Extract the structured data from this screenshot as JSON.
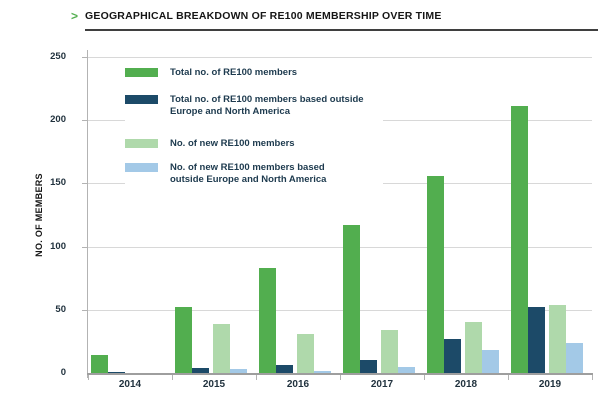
{
  "title": "GEOGRAPHICAL BREAKDOWN OF RE100 MEMBERSHIP OVER TIME",
  "title_chevron": ">",
  "chart_data": {
    "type": "bar",
    "title": "GEOGRAPHICAL BREAKDOWN OF RE100 MEMBERSHIP OVER TIME",
    "xlabel": "",
    "ylabel": "NO. OF MEMBERS",
    "ylim": [
      0,
      250
    ],
    "ytick_step": 50,
    "yticks": [
      0,
      50,
      100,
      150,
      200,
      250
    ],
    "grid": true,
    "legend_position": "inside-top-left",
    "categories": [
      "2014",
      "2015",
      "2016",
      "2017",
      "2018",
      "2019"
    ],
    "series": [
      {
        "name": "Total no. of RE100 members",
        "label_lines": [
          "Total no. of RE100 members"
        ],
        "color": "#52AE4F",
        "values": [
          14,
          52,
          83,
          117,
          156,
          211
        ]
      },
      {
        "name": "Total no. of RE100 members based outside Europe and North America",
        "label_lines": [
          "Total no. of RE100 members based outside",
          "Europe and North America"
        ],
        "color": "#1C4A68",
        "values": [
          1,
          4,
          6,
          10,
          27,
          52
        ]
      },
      {
        "name": "No. of new RE100 members",
        "label_lines": [
          "No. of new RE100 members"
        ],
        "color": "#AFD9AB",
        "values": [
          0,
          39,
          31,
          34,
          40,
          54
        ]
      },
      {
        "name": "No. of new RE100 members based outside Europe and North America",
        "label_lines": [
          "No. of new RE100 members based",
          "outside Europe and North America"
        ],
        "color": "#A3C9E7",
        "values": [
          0,
          3,
          2,
          5,
          18,
          24
        ]
      }
    ]
  },
  "colors": {
    "accent_green": "#52AE4F",
    "dark_navy": "#1C4A68",
    "light_green": "#AFD9AB",
    "light_blue": "#A3C9E7",
    "gridline": "#D8D8D8",
    "axis": "#9E9E9E",
    "title_text": "#161616",
    "legend_text": "#1D3A4E"
  }
}
